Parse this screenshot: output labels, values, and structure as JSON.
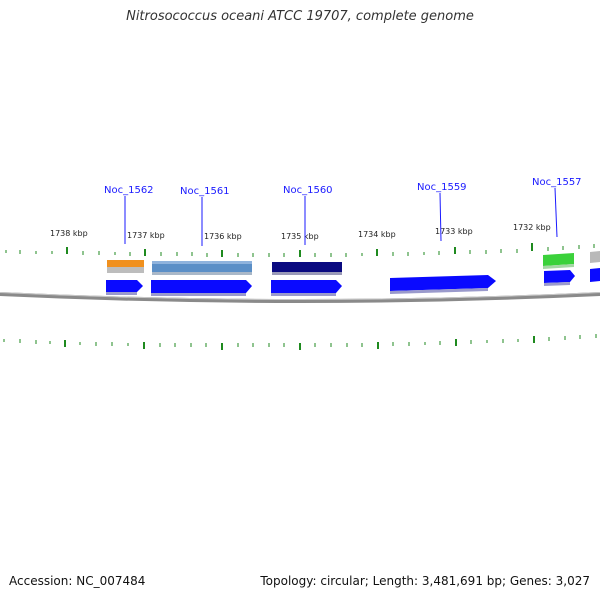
{
  "title": "Nitrosococcus oceani ATCC 19707, complete genome",
  "footer": {
    "accession": "Accession: NC_007484",
    "summary": "Topology: circular; Length: 3,481,691 bp; Genes: 3,027"
  },
  "kbp_labels": [
    "1738 kbp",
    "1737 kbp",
    "1736 kbp",
    "1735 kbp",
    "1734 kbp",
    "1733 kbp",
    "1732 kbp"
  ],
  "gene_labels": [
    "Noc_1562",
    "Noc_1561",
    "Noc_1560",
    "Noc_1559",
    "Noc_1557"
  ],
  "colors": {
    "tick": "#1f8a1f",
    "backbone": "#8a8a8a",
    "gene_blue": "#0a0aff",
    "orange": "#f0901e",
    "steel": "#5b8fc7",
    "navy": "#0a0a80",
    "green": "#3bd13b",
    "gray": "#b9b9b9",
    "label": "#1a1aff"
  }
}
